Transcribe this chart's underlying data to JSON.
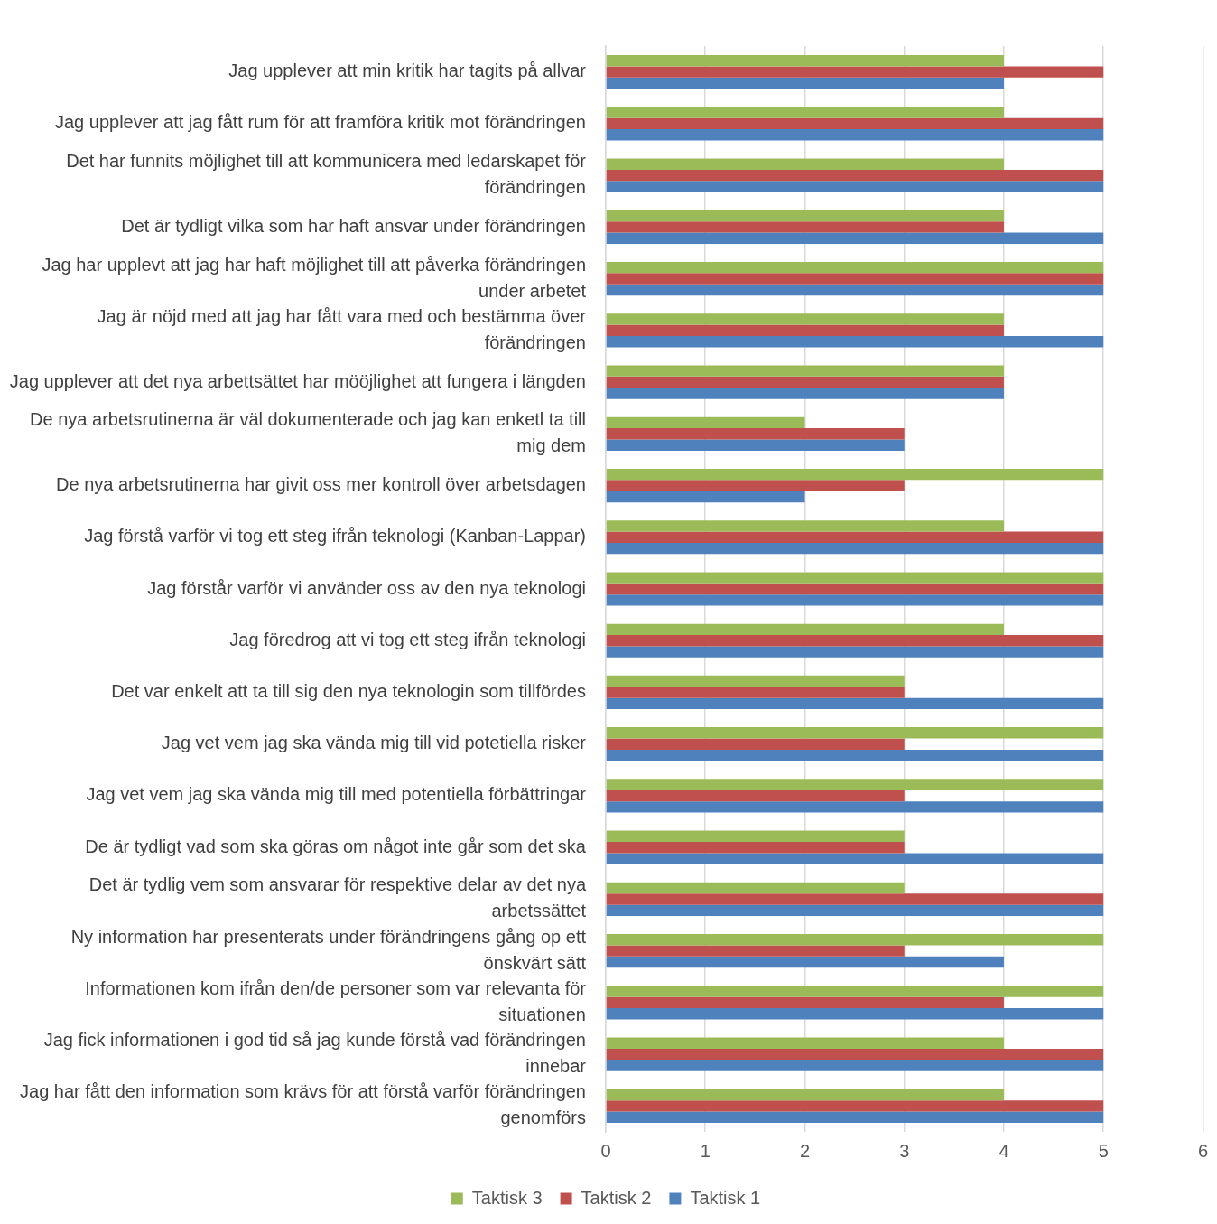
{
  "chart_data": {
    "type": "bar",
    "orientation": "horizontal",
    "categories": [
      "Jag upplever att min kritik har tagits på allvar",
      "Jag upplever att jag fått rum för att framföra kritik mot förändringen",
      "Det har funnits möjlighet till att kommunicera med ledarskapet för förändringen",
      "Det är tydligt vilka som har haft ansvar under förändringen",
      "Jag har upplevt att jag har haft möjlighet till att påverka förändringen under arbetet",
      "Jag är nöjd med att jag har fått vara med och bestämma över förändringen",
      "Jag upplever att det nya arbettsättet har mööjlighet att fungera i längden",
      "De nya arbetsrutinerna är väl dokumenterade och jag kan enketl ta till mig dem",
      "De nya arbetsrutinerna har givit oss mer kontroll över arbetsdagen",
      "Jag förstå varför vi tog ett steg ifrån teknologi (Kanban-Lappar)",
      "Jag förstår varför vi använder oss av den nya teknologi",
      "Jag föredrog att vi tog ett steg ifrån teknologi",
      "Det var enkelt att ta till sig den nya teknologin som tillfördes",
      "Jag vet vem jag ska vända mig till vid potetiella risker",
      "Jag vet vem jag ska vända mig till med potentiella förbättringar",
      "De är tydligt vad som ska göras om något inte går som det ska",
      "Det är tydlig vem som ansvarar för respektive delar av det nya arbetssättet",
      "Ny information har presenterats under förändringens gång op ett önskvärt sätt",
      "Informationen kom ifrån den/de personer som var relevanta för situationen",
      "Jag fick informationen i god tid så jag kunde förstå vad förändringen innebar",
      "Jag har fått den information som krävs för att förstå varför förändringen genomförs"
    ],
    "series": [
      {
        "name": "Taktisk 3",
        "color": "#9bbb59",
        "values": [
          4,
          4,
          4,
          4,
          5,
          4,
          4,
          2,
          5,
          4,
          5,
          4,
          3,
          5,
          5,
          3,
          3,
          5,
          5,
          4,
          4
        ]
      },
      {
        "name": "Taktisk 2",
        "color": "#c0504d",
        "values": [
          5,
          5,
          5,
          4,
          5,
          4,
          4,
          3,
          3,
          5,
          5,
          5,
          3,
          3,
          3,
          3,
          5,
          3,
          4,
          5,
          5
        ]
      },
      {
        "name": "Taktisk 1",
        "color": "#4f81bd",
        "values": [
          4,
          5,
          5,
          5,
          5,
          5,
          4,
          3,
          2,
          5,
          5,
          5,
          5,
          5,
          5,
          5,
          5,
          4,
          5,
          5,
          5
        ]
      }
    ],
    "xlim": [
      0,
      6
    ],
    "xticks": [
      0,
      1,
      2,
      3,
      4,
      5,
      6
    ],
    "grid": "x",
    "legend": "bottom"
  }
}
